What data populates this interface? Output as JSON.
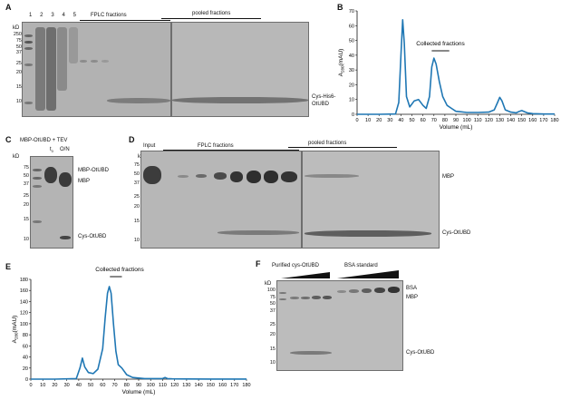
{
  "panels": {
    "A": {
      "letter": "A",
      "kd_label": "kD",
      "markers": [
        "250",
        "75",
        "50",
        "37",
        "25",
        "20",
        "15",
        "10"
      ],
      "lanes": [
        "1",
        "2",
        "3",
        "4",
        "5"
      ],
      "header_left": "FPLC fractions",
      "header_right": "pooled fractions",
      "band_label_line1": "Cys-His6-",
      "band_label_line2": "OtUBD"
    },
    "B": {
      "letter": "B",
      "annotation": "Collected fractions"
    },
    "C": {
      "letter": "C",
      "title": "MBP-OtUBD + TEV",
      "kd_label": "kD",
      "lane_t0": "t",
      "lane_t0_sub": "0",
      "lane_on": "O/N",
      "markers": [
        "75",
        "50",
        "37",
        "25",
        "20",
        "15",
        "10"
      ],
      "labels": [
        "MBP-OtUBD",
        "MBP",
        "Cys-OtUBD"
      ]
    },
    "D": {
      "letter": "D",
      "kd_label": "kD",
      "input_label": "Input",
      "header_left": "FPLC fractions",
      "header_right": "pooled fractions",
      "markers": [
        "75",
        "50",
        "37",
        "25",
        "20",
        "15",
        "10"
      ],
      "labels": [
        "MBP",
        "Cys-OtUBD"
      ]
    },
    "E": {
      "letter": "E",
      "annotation": "Collected fractions"
    },
    "F": {
      "letter": "F",
      "kd_label": "kD",
      "header_left": "Purified cys-OtUBD",
      "header_right": "BSA standard",
      "markers": [
        "100",
        "75",
        "50",
        "37",
        "25",
        "20",
        "15",
        "10"
      ],
      "labels": [
        "BSA",
        "MBP",
        "Cys-OtUBD"
      ]
    }
  },
  "chart_data": [
    {
      "type": "line",
      "panel": "B",
      "annotation": "Collected fractions",
      "ylabel_main": "A",
      "ylabel_sub": "280",
      "ylabel_unit": "(mAU)",
      "xlabel": "Volume (mL)",
      "xlim": [
        0,
        180
      ],
      "ylim": [
        0,
        70
      ],
      "xticks": [
        0,
        10,
        20,
        30,
        40,
        50,
        60,
        70,
        80,
        90,
        100,
        110,
        120,
        130,
        140,
        150,
        160,
        170,
        180
      ],
      "yticks": [
        0,
        10,
        20,
        30,
        40,
        50,
        60,
        70
      ],
      "collected_range": [
        68,
        84
      ],
      "color": "#1f77b4",
      "x": [
        0,
        20,
        35,
        38,
        40,
        41.5,
        43,
        45,
        48,
        52,
        56,
        60,
        63,
        66,
        68,
        70,
        72,
        75,
        78,
        82,
        86,
        90,
        100,
        110,
        120,
        125,
        128,
        130,
        132,
        135,
        140,
        145,
        148,
        150,
        155,
        160,
        170,
        180
      ],
      "y": [
        0,
        0,
        0.2,
        8,
        40,
        64,
        48,
        12,
        5,
        9,
        10,
        6,
        4,
        12,
        32,
        38,
        34,
        22,
        12,
        6,
        4,
        2,
        1.2,
        1.2,
        1.5,
        3,
        8,
        11.5,
        9,
        3,
        1.5,
        1,
        2,
        2.5,
        1,
        0.4,
        0.2,
        0.2
      ]
    },
    {
      "type": "line",
      "panel": "E",
      "annotation": "Collected fractions",
      "ylabel_main": "A",
      "ylabel_sub": "280",
      "ylabel_unit": "(mAU)",
      "xlabel": "Volume (mL)",
      "xlim": [
        0,
        180
      ],
      "ylim": [
        0,
        180
      ],
      "xticks": [
        0,
        10,
        20,
        30,
        40,
        50,
        60,
        70,
        80,
        90,
        100,
        110,
        120,
        130,
        140,
        150,
        160,
        170,
        180
      ],
      "yticks": [
        0,
        20,
        40,
        60,
        80,
        100,
        120,
        140,
        160,
        180
      ],
      "collected_range": [
        66,
        76
      ],
      "color": "#1f77b4",
      "x": [
        0,
        20,
        38,
        41,
        43,
        45,
        48,
        52,
        56,
        60,
        62,
        64,
        65.5,
        67,
        69,
        71,
        73,
        76,
        80,
        85,
        95,
        110,
        112,
        114,
        118,
        130,
        150,
        180
      ],
      "y": [
        0,
        0,
        1,
        20,
        38,
        22,
        12,
        10,
        18,
        55,
        110,
        155,
        167,
        155,
        100,
        50,
        26,
        20,
        8,
        3,
        1,
        1,
        3,
        1,
        0.5,
        0.3,
        0.2,
        0.2
      ]
    }
  ]
}
